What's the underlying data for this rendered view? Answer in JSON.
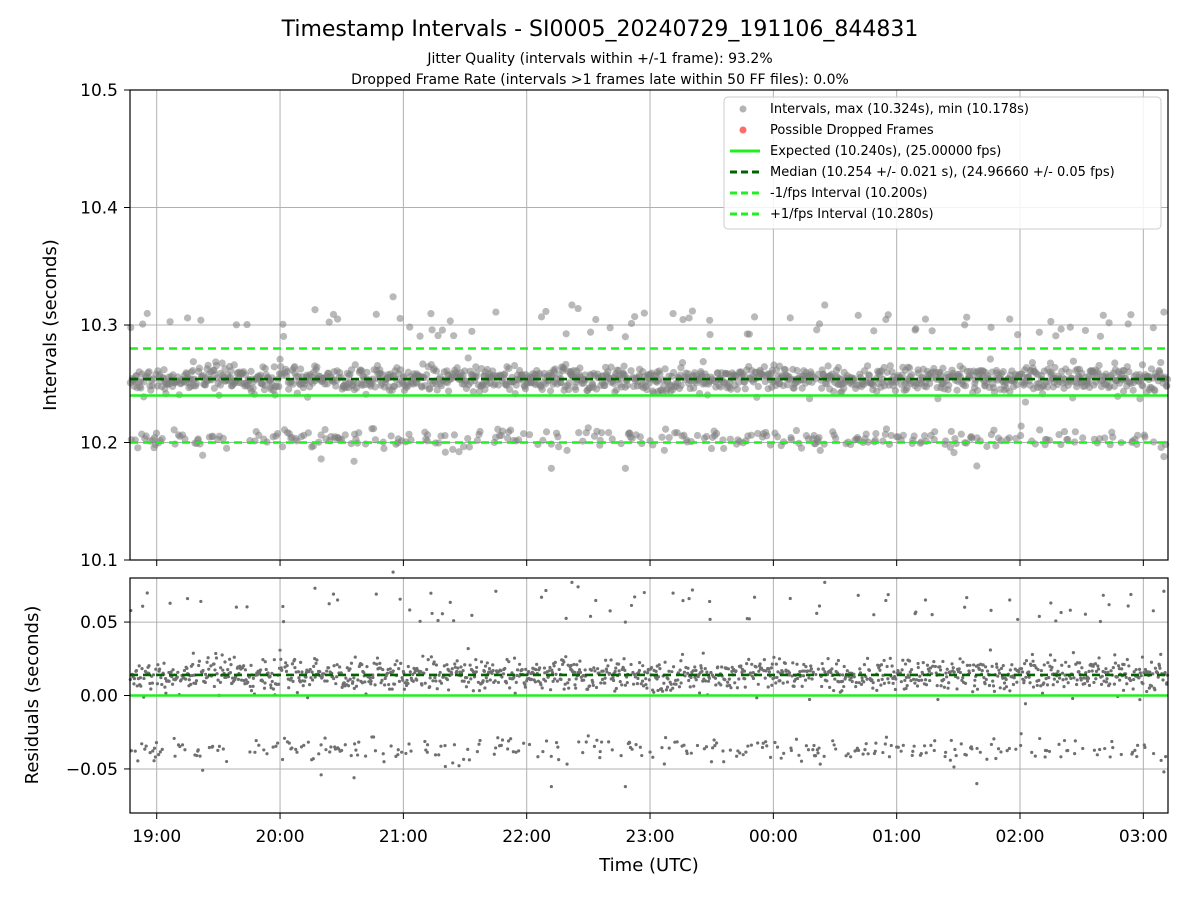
{
  "chart_data": [
    {
      "type": "scatter",
      "title": "Timestamp Intervals - SI0005_20240729_191106_844831",
      "subtitle_lines": [
        "Jitter Quality (intervals within +/-1 frame): 93.2%",
        "Dropped Frame Rate (intervals >1 frames late within 50 FF files): 0.0%"
      ],
      "xlabel": "",
      "ylabel": "Intervals (seconds)",
      "x_start": "2024-07-29T18:47:00Z",
      "x_end": "2024-07-30T03:12:00Z",
      "xlim": [
        "2024-07-29T18:47:00Z",
        "2024-07-30T03:12:00Z"
      ],
      "ylim": [
        10.1,
        10.5
      ],
      "yticks": [
        10.1,
        10.2,
        10.3,
        10.4,
        10.5
      ],
      "ytick_labels": [
        "10.1",
        "10.2",
        "10.3",
        "10.4",
        "10.5"
      ],
      "xticks": [
        "2024-07-29T19:00:00Z",
        "2024-07-29T20:00:00Z",
        "2024-07-29T21:00:00Z",
        "2024-07-29T22:00:00Z",
        "2024-07-29T23:00:00Z",
        "2024-07-30T00:00:00Z",
        "2024-07-30T01:00:00Z",
        "2024-07-30T02:00:00Z",
        "2024-07-30T03:00:00Z"
      ],
      "grid": true,
      "legend_position": "top-right",
      "series": [
        {
          "name": "Intervals, max (10.324s), min (10.178s)",
          "kind": "scatter",
          "color": "#808080",
          "max": 10.324,
          "min": 10.178,
          "values_x": [
            "2024-07-29T20:55:00Z",
            "2024-07-29T22:22:00Z",
            "2024-07-29T20:17:00Z",
            "2024-07-29T20:26:00Z",
            "2024-07-29T22:25:00Z",
            "2024-07-29T23:19:00Z",
            "2024-07-29T21:45:00Z",
            "2024-07-29T20:28:00Z",
            "2024-07-29T19:15:00Z",
            "2024-07-29T22:48:00Z",
            "2024-07-29T23:29:00Z",
            "2024-07-30T00:25:00Z",
            "2024-07-30T01:14:00Z",
            "2024-07-30T01:55:00Z",
            "2024-07-30T02:15:00Z",
            "2024-07-30T03:10:00Z",
            "2024-07-29T22:12:00Z",
            "2024-07-29T22:48:00Z",
            "2024-07-30T01:39:00Z",
            "2024-07-29T20:20:00Z",
            "2024-07-29T20:36:00Z",
            "2024-07-30T03:10:00Z"
          ],
          "values_y": [
            10.324,
            10.317,
            10.313,
            10.309,
            10.314,
            10.306,
            10.311,
            10.305,
            10.306,
            10.29,
            10.304,
            10.317,
            10.305,
            10.305,
            10.303,
            10.311,
            10.178,
            10.178,
            10.18,
            10.186,
            10.184,
            10.188
          ],
          "distribution_note": ""
        },
        {
          "name": "Possible Dropped Frames",
          "kind": "scatter",
          "color": "#ff6b6b",
          "count": 0
        },
        {
          "name": "Expected (10.240s), (25.00000 fps)",
          "kind": "hline",
          "y": 10.24,
          "color": "#22ee22",
          "style": "solid"
        },
        {
          "name": "Median (10.254 +/- 0.021 s), (24.96660 +/- 0.05 fps)",
          "kind": "hline",
          "y": 10.254,
          "color": "#006400",
          "style": "dashed"
        },
        {
          "name": "-1/fps Interval (10.200s)",
          "kind": "hline",
          "y": 10.2,
          "color": "#22ee22",
          "style": "dashed"
        },
        {
          "name": "+1/fps Interval (10.280s)",
          "kind": "hline",
          "y": 10.28,
          "color": "#22ee22",
          "style": "dashed"
        }
      ]
    },
    {
      "type": "scatter",
      "title": "",
      "xlabel": "Time (UTC)",
      "ylabel": "Residuals (seconds)",
      "xlim": [
        "2024-07-29T18:47:00Z",
        "2024-07-30T03:12:00Z"
      ],
      "ylim": [
        -0.08,
        0.08
      ],
      "yticks": [
        -0.05,
        0.0,
        0.05
      ],
      "ytick_labels": [
        "−0.05",
        "0.00",
        "0.05"
      ],
      "xticks": [
        "2024-07-29T19:00:00Z",
        "2024-07-29T20:00:00Z",
        "2024-07-29T21:00:00Z",
        "2024-07-29T22:00:00Z",
        "2024-07-29T23:00:00Z",
        "2024-07-30T00:00:00Z",
        "2024-07-30T01:00:00Z",
        "2024-07-30T02:00:00Z",
        "2024-07-30T03:00:00Z"
      ],
      "xtick_labels": [
        "19:00",
        "20:00",
        "21:00",
        "22:00",
        "23:00",
        "00:00",
        "01:00",
        "02:00",
        "03:00"
      ],
      "grid": true,
      "series": [
        {
          "kind": "scatter",
          "color": "#707070",
          "max": 0.08,
          "min": -0.062
        },
        {
          "kind": "hline",
          "y": 0.0,
          "color": "#22ee22",
          "style": "solid"
        },
        {
          "kind": "hline",
          "y": 0.014,
          "color": "#006400",
          "style": "dashed"
        }
      ]
    }
  ]
}
